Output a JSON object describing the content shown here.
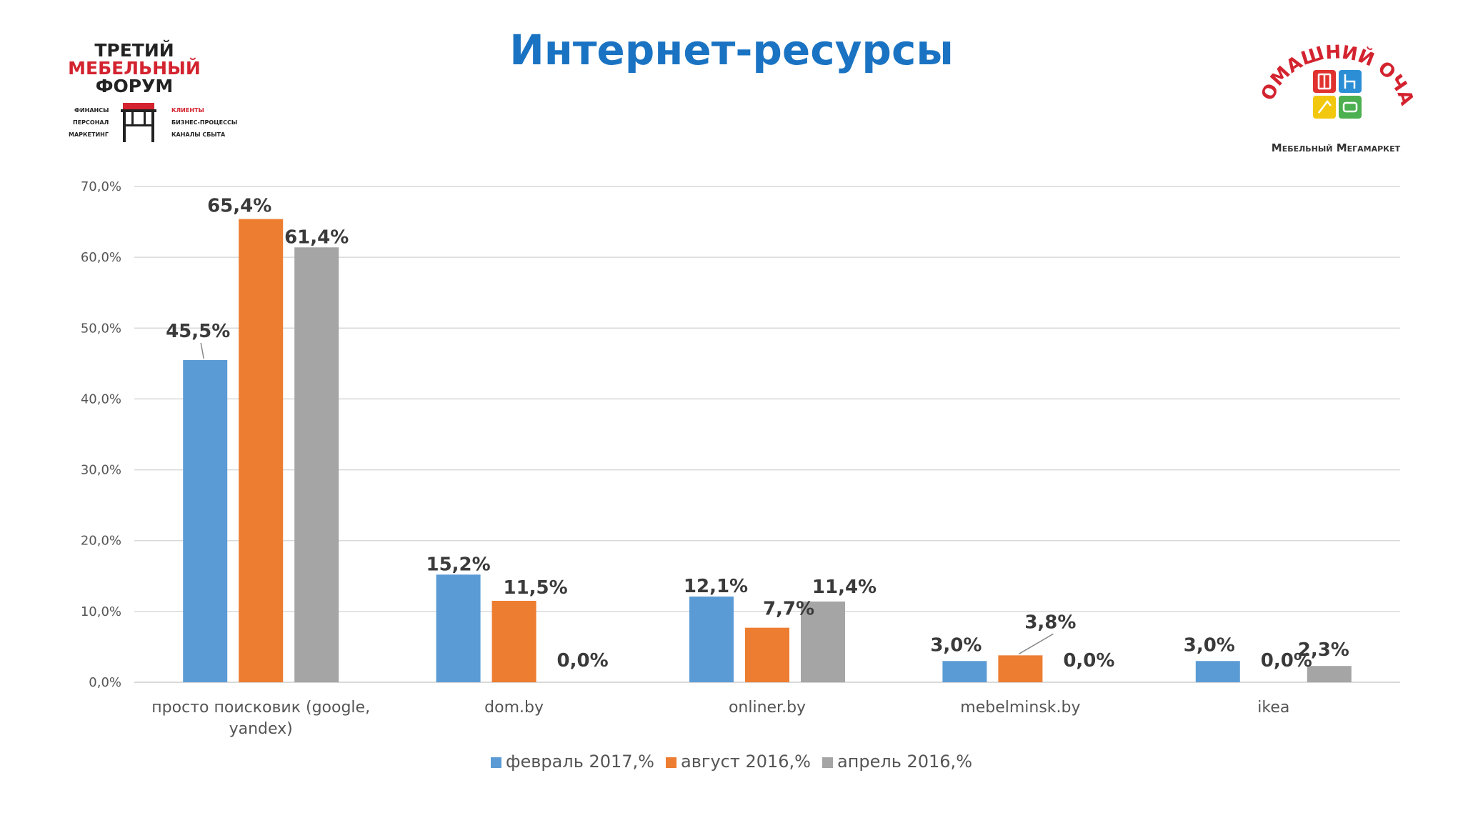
{
  "slide": {
    "title": "Интернет-ресурсы"
  },
  "logos": {
    "forum": {
      "line1": "ТРЕТИЙ",
      "line2": "МЕБЕЛЬНЫЙ",
      "line3": "ФОРУМ",
      "left_items": [
        "ФИНАНСЫ",
        "ПЕРСОНАЛ",
        "МАРКЕТИНГ"
      ],
      "right_items": [
        "КЛИЕНТЫ",
        "БИЗНЕС-ПРОЦЕССЫ",
        "КАНАЛЫ СБЫТА"
      ]
    },
    "home": {
      "arc_text": "ДОМАШНИЙ ОЧАГ",
      "subtitle": "Мебельный Мегамаркет"
    }
  },
  "colors": {
    "title": "#1a73c2",
    "series": [
      "#5b9bd5",
      "#ed7d31",
      "#a5a5a5"
    ],
    "gridline": "#d9d9d9"
  },
  "chart_data": {
    "type": "bar",
    "categories": [
      "просто поисковик (google, yandex)",
      "dom.by",
      "onliner.by",
      "mebelminsk.by",
      "ikea"
    ],
    "category_lines": [
      [
        "просто поисковик (google,",
        "yandex)"
      ],
      [
        "dom.by"
      ],
      [
        "onliner.by"
      ],
      [
        "mebelminsk.by"
      ],
      [
        "ikea"
      ]
    ],
    "series": [
      {
        "name": "февраль 2017,%",
        "values": [
          45.5,
          15.2,
          12.1,
          3.0,
          3.0
        ],
        "labels": [
          "45,5%",
          "15,2%",
          "12,1%",
          "3,0%",
          "3,0%"
        ]
      },
      {
        "name": "август 2016,%",
        "values": [
          65.4,
          11.5,
          7.7,
          3.8,
          0.0
        ],
        "labels": [
          "65,4%",
          "11,5%",
          "7,7%",
          "3,8%",
          "0,0%"
        ]
      },
      {
        "name": "апрель 2016,%",
        "values": [
          61.4,
          0.0,
          11.4,
          0.0,
          2.3
        ],
        "labels": [
          "61,4%",
          "0,0%",
          "11,4%",
          "0,0%",
          "2,3%"
        ]
      }
    ],
    "yticks": [
      0,
      10,
      20,
      30,
      40,
      50,
      60,
      70
    ],
    "ytick_labels": [
      "0,0%",
      "10,0%",
      "20,0%",
      "30,0%",
      "40,0%",
      "50,0%",
      "60,0%",
      "70,0%"
    ],
    "ylim": [
      0,
      70
    ],
    "grid": true,
    "legend_position": "bottom",
    "title": "",
    "xlabel": "",
    "ylabel": ""
  }
}
